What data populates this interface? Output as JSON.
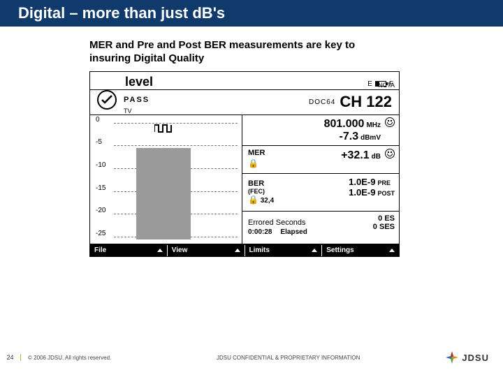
{
  "slide": {
    "title": "Digital – more than just dB's",
    "subtitle": "MER and Pre and Post BER measurements are key to insuring Digital Quality",
    "page_number": "24",
    "copyright": "© 2006 JDSU. All rights reserved.",
    "confidential": "JDSU CONFIDENTIAL & PROPRIETARY INFORMATION",
    "logo_text": "JDSU"
  },
  "device": {
    "header_left": "level",
    "header_battery_label_E": "E",
    "header_battery_label_F": "F",
    "ncta": "NCTA",
    "pass_label": "PASS",
    "tv_label": "TV",
    "doc_label": "DOC64",
    "ch_prefix": "CH",
    "ch_number": "122",
    "freq": {
      "value": "801.000",
      "unit": "MHz",
      "level_value": "-7.3",
      "level_unit": "dBmV"
    },
    "mer": {
      "label": "MER",
      "value": "+32.1",
      "unit": "dB"
    },
    "ber": {
      "label": "BER",
      "sublabel": "(FEC)",
      "lock_val": "32,4",
      "pre_val": "1.0E-9",
      "pre_label": "PRE",
      "post_val": "1.0E-9",
      "post_label": "POST"
    },
    "errored": {
      "label": "Errored Seconds",
      "time": "0:00:28",
      "elapsed_label": "Elapsed",
      "es_val": "0",
      "es_label": "ES",
      "ses_val": "0",
      "ses_label": "SES"
    },
    "graph": {
      "ticks": [
        "0",
        "-5",
        "-10",
        "-15",
        "-20",
        "-25"
      ],
      "tick_positions_pct": [
        3,
        22,
        41,
        60,
        79,
        98
      ],
      "bar": {
        "left_pct": 18,
        "width_pct": 44,
        "top_pct": 24,
        "color": "#9a9a9a"
      }
    },
    "menu": [
      "File",
      "View",
      "Limits",
      "Settings"
    ]
  },
  "colors": {
    "title_bg": "#0f3a6b",
    "accent": "#ccad00"
  },
  "logo_colors": [
    "#b52a2a",
    "#e28a1d",
    "#6aa22b",
    "#2a6db5"
  ]
}
